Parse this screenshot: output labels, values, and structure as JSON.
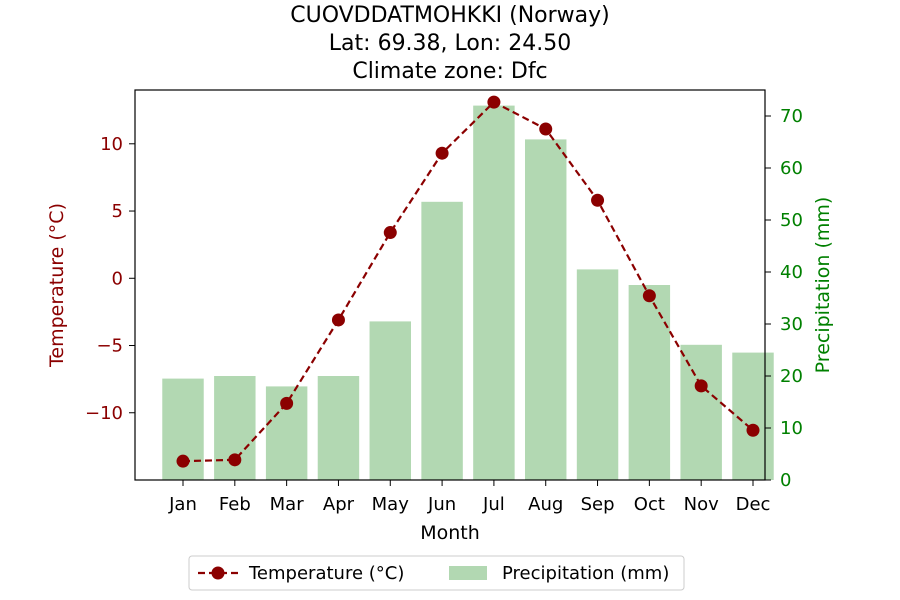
{
  "chart_data": {
    "type": "bar+line",
    "title_lines": [
      "CUOVDDATMOHKKI (Norway)",
      "Lat: 69.38, Lon: 24.50",
      "Climate zone: Dfc"
    ],
    "xlabel": "Month",
    "ylabel_left": "Temperature (°C)",
    "ylabel_right": "Precipitation (mm)",
    "categories": [
      "Jan",
      "Feb",
      "Mar",
      "Apr",
      "May",
      "Jun",
      "Jul",
      "Aug",
      "Sep",
      "Oct",
      "Nov",
      "Dec"
    ],
    "y_left": {
      "ylim": [
        -15,
        14
      ],
      "ticks": [
        -10,
        -5,
        0,
        5,
        10
      ],
      "tick_labels": [
        "−10",
        "−5",
        "0",
        "5",
        "10"
      ]
    },
    "y_right": {
      "ylim": [
        0,
        75
      ],
      "ticks": [
        0,
        10,
        20,
        30,
        40,
        50,
        60,
        70
      ],
      "tick_labels": [
        "0",
        "10",
        "20",
        "30",
        "40",
        "50",
        "60",
        "70"
      ]
    },
    "series": [
      {
        "name": "Temperature (°C)",
        "kind": "line",
        "axis": "left",
        "color": "#8b0000",
        "values": [
          -13.6,
          -13.5,
          -9.3,
          -3.1,
          3.4,
          9.3,
          13.1,
          11.1,
          5.8,
          -1.3,
          -8.0,
          -11.3
        ]
      },
      {
        "name": "Precipitation (mm)",
        "kind": "bar",
        "axis": "right",
        "color": "#b2d8b2",
        "values": [
          19.5,
          20.0,
          18.0,
          20.0,
          30.5,
          53.5,
          72.0,
          65.5,
          40.5,
          37.5,
          26.0,
          24.5
        ]
      }
    ],
    "legend_position": "bottom-center",
    "colors": {
      "left_axis": "#8b0000",
      "right_axis": "#008000"
    }
  }
}
